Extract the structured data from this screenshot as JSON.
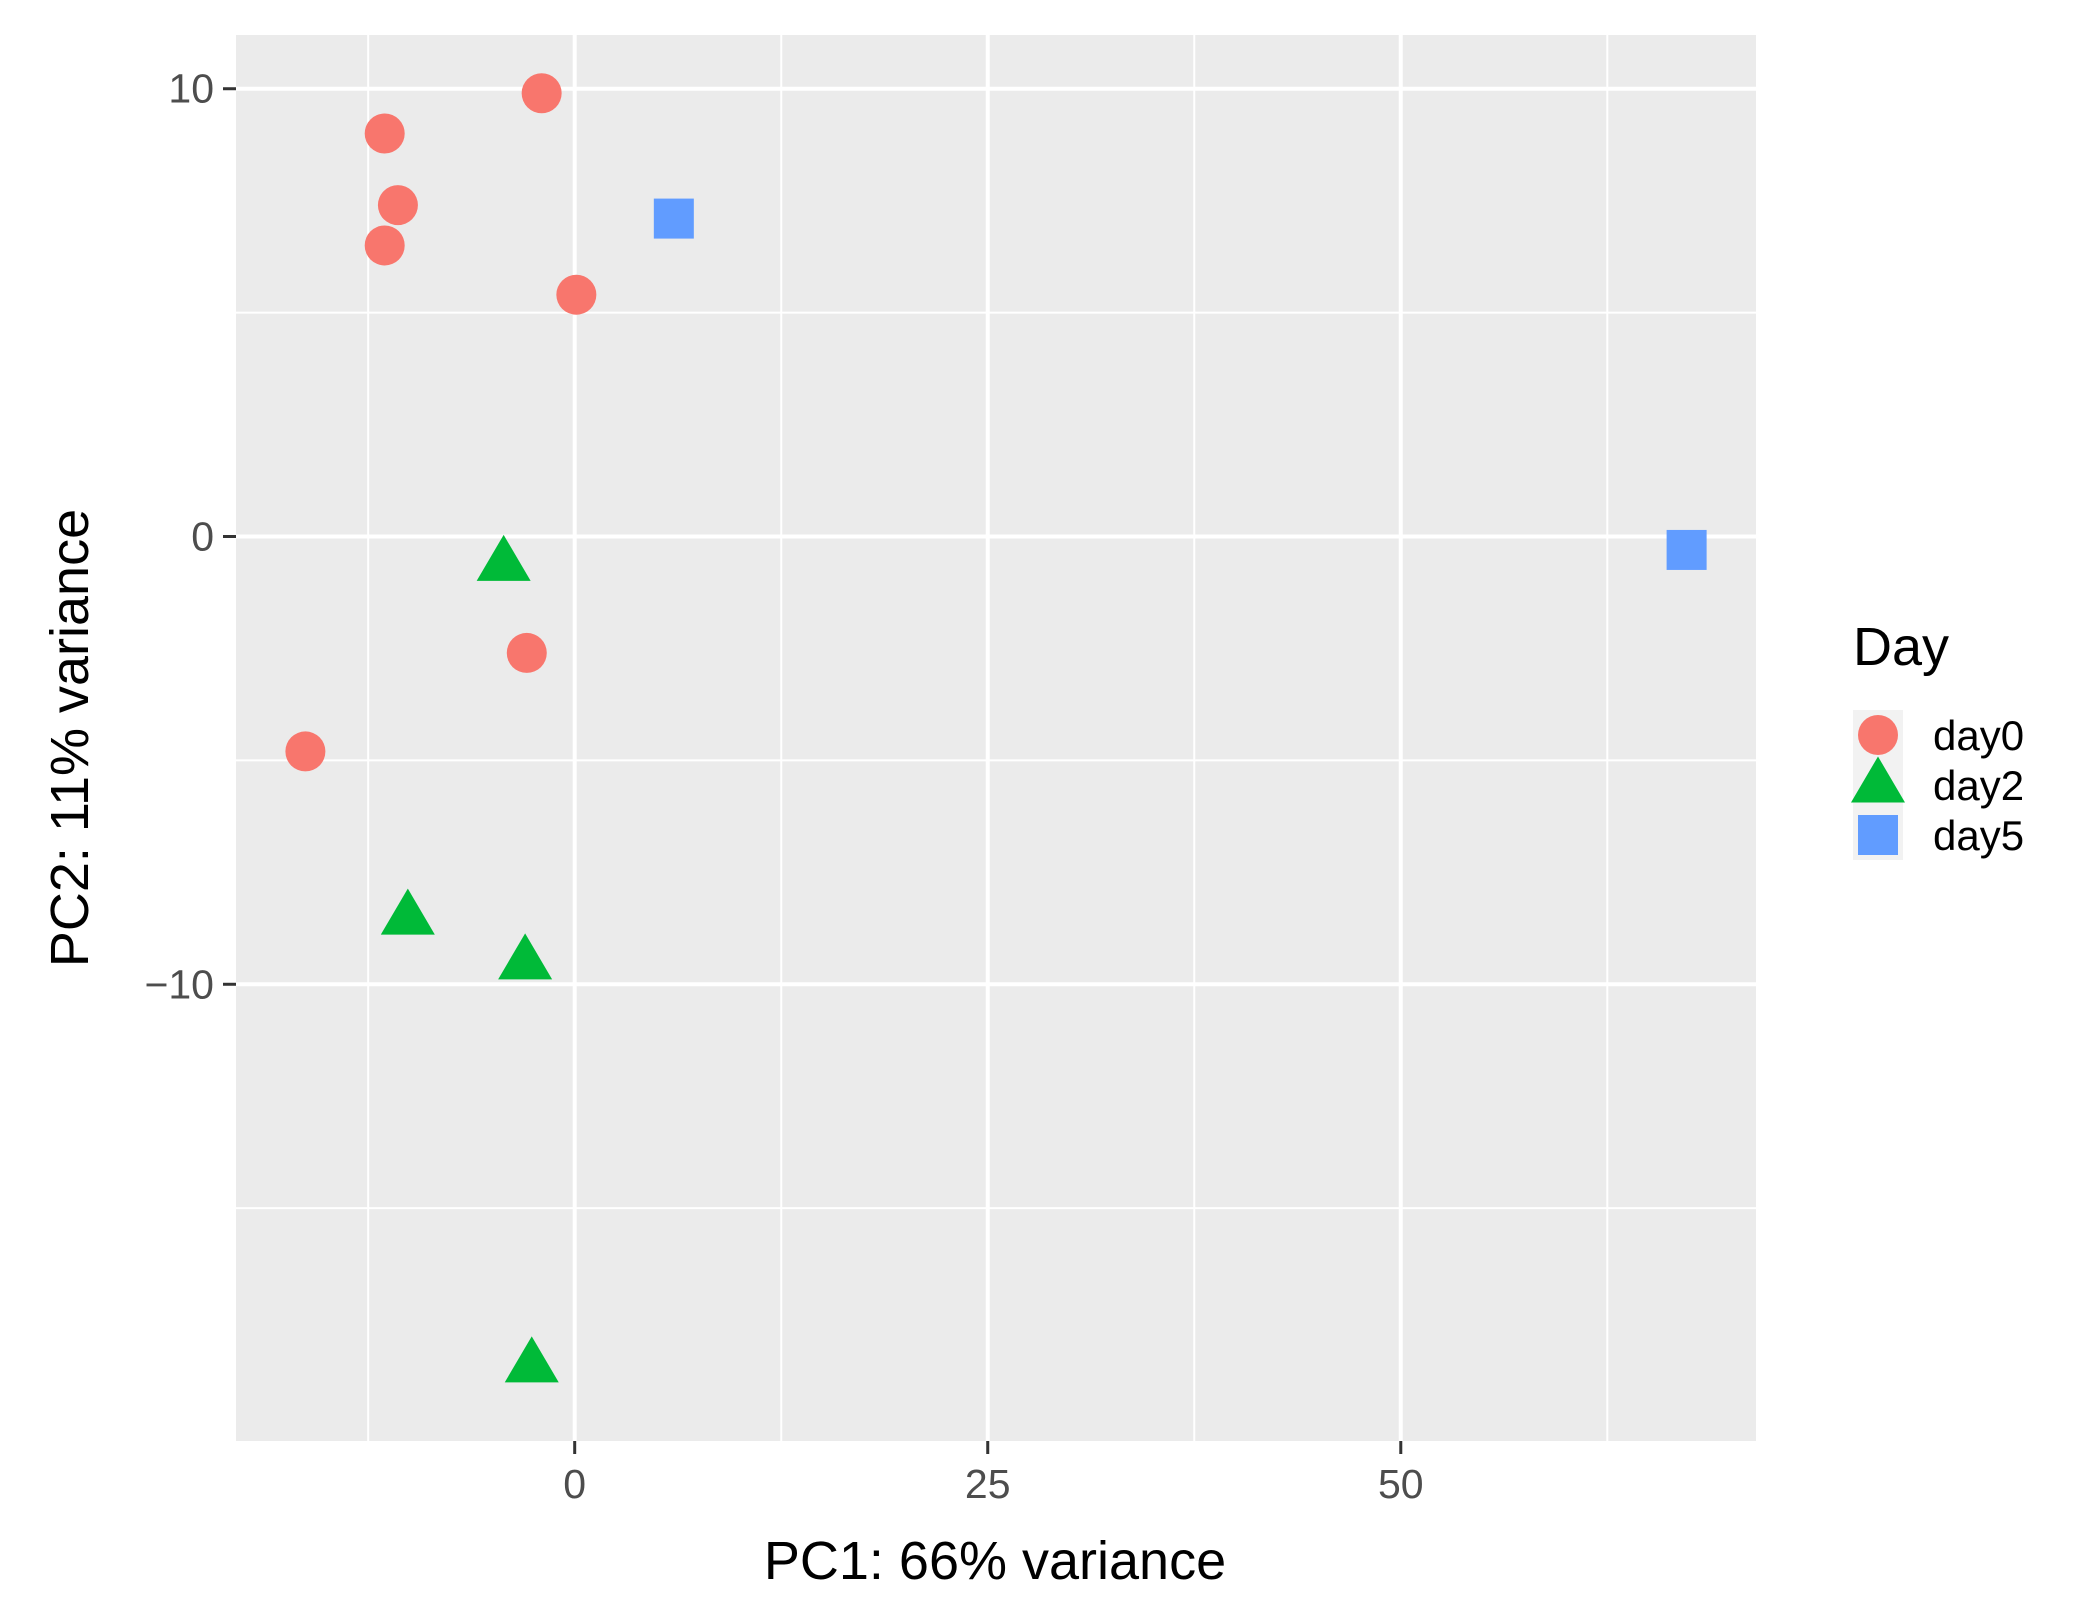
{
  "chart_data": {
    "type": "scatter",
    "xlabel": "PC1: 66% variance",
    "ylabel": "PC2: 11% variance",
    "xlim": [
      -20.5,
      71.5
    ],
    "ylim": [
      -20.2,
      11.2
    ],
    "x_ticks": [
      0,
      25,
      50
    ],
    "x_tick_labels": [
      "0",
      "25",
      "50"
    ],
    "x_minor_ticks": [
      -12.5,
      12.5,
      37.5,
      62.5
    ],
    "y_ticks": [
      10,
      0,
      -10
    ],
    "y_tick_labels": [
      "10",
      "0",
      "−10"
    ],
    "y_minor_ticks": [
      5,
      -5,
      -15
    ],
    "grid": true,
    "panel_background": "#ebebeb",
    "legend": {
      "title": "Day",
      "placement": "right",
      "entries": [
        "day0",
        "day2",
        "day5"
      ]
    },
    "series": [
      {
        "name": "day0",
        "shape": "circle",
        "color": "#f8766d",
        "points": [
          {
            "x": -2.0,
            "y": 9.9
          },
          {
            "x": -11.5,
            "y": 9.0
          },
          {
            "x": -10.7,
            "y": 7.4
          },
          {
            "x": -11.5,
            "y": 6.5
          },
          {
            "x": 0.1,
            "y": 5.4
          },
          {
            "x": -2.9,
            "y": -2.6
          },
          {
            "x": -16.3,
            "y": -4.8
          }
        ]
      },
      {
        "name": "day2",
        "shape": "triangle",
        "color": "#00ba38",
        "points": [
          {
            "x": -4.3,
            "y": -0.6
          },
          {
            "x": -10.1,
            "y": -8.5
          },
          {
            "x": -3.0,
            "y": -9.5
          },
          {
            "x": -2.6,
            "y": -18.5
          }
        ]
      },
      {
        "name": "day5",
        "shape": "square",
        "color": "#619cff",
        "points": [
          {
            "x": 6.0,
            "y": 7.1
          },
          {
            "x": 67.3,
            "y": -0.3
          }
        ]
      }
    ]
  }
}
